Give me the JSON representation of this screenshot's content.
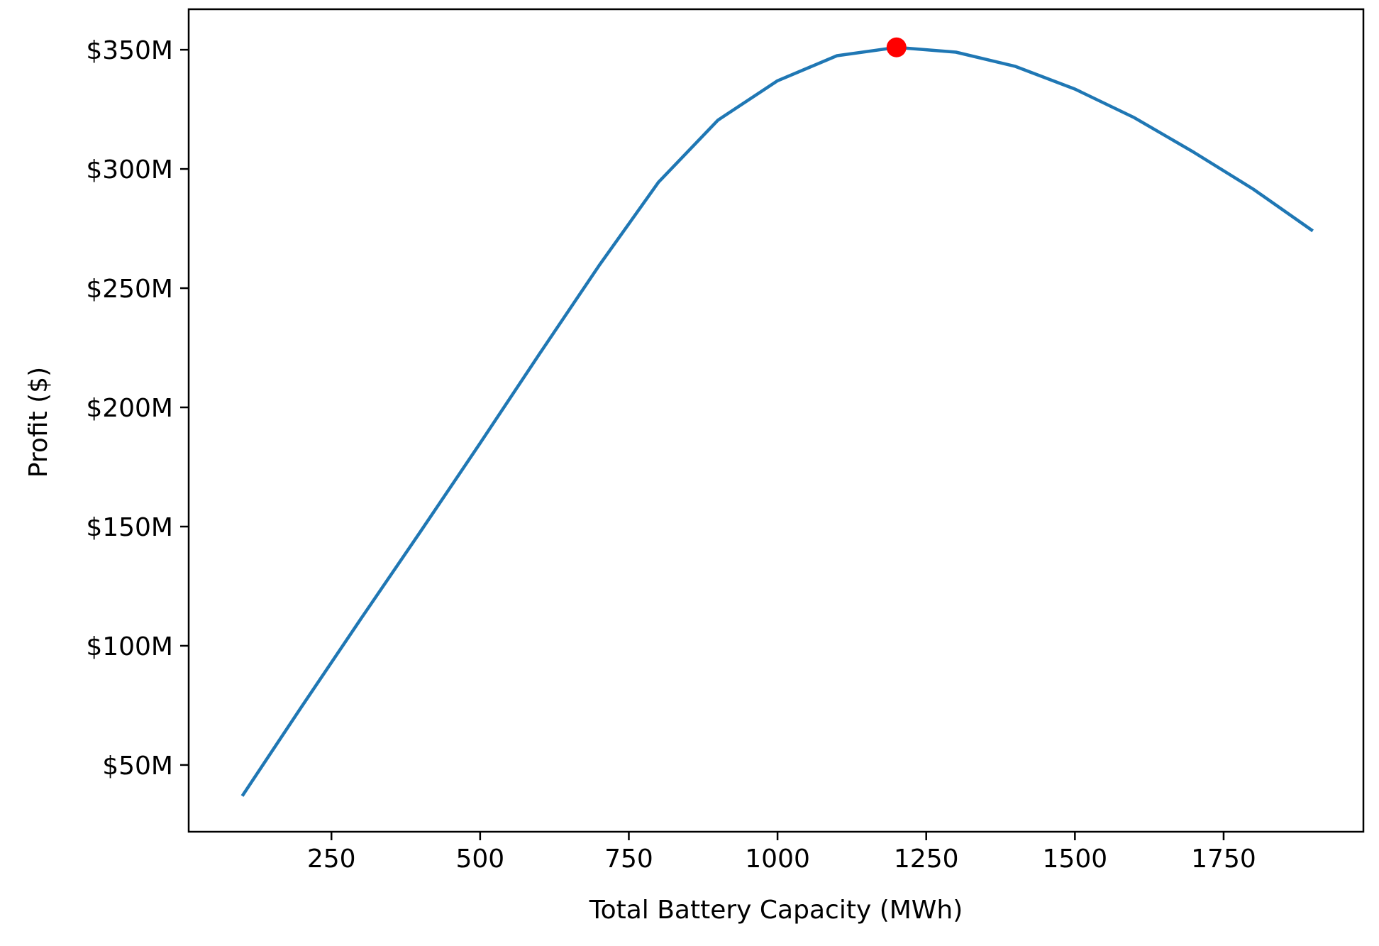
{
  "chart_data": {
    "type": "line",
    "title": "",
    "xlabel": "Total Battery Capacity (MWh)",
    "ylabel": "Profit ($)",
    "xlim": [
      10,
      1985
    ],
    "ylim": [
      22000000,
      367000000
    ],
    "grid": false,
    "x_ticks": [
      250,
      500,
      750,
      1000,
      1250,
      1500,
      1750
    ],
    "x_tick_labels": [
      "250",
      "500",
      "750",
      "1000",
      "1250",
      "1500",
      "1750"
    ],
    "y_ticks": [
      50000000,
      100000000,
      150000000,
      200000000,
      250000000,
      300000000,
      350000000
    ],
    "y_tick_labels": [
      "$50M",
      "$100M",
      "$150M",
      "$200M",
      "$250M",
      "$300M",
      "$350M"
    ],
    "series": [
      {
        "color": "#1f77b4",
        "x": [
          100,
          200,
          300,
          400,
          500,
          600,
          700,
          800,
          900,
          1000,
          1100,
          1200,
          1300,
          1400,
          1500,
          1600,
          1700,
          1800,
          1900
        ],
        "y": [
          37000000,
          74500000,
          111500000,
          148000000,
          185000000,
          222500000,
          259500000,
          294500000,
          320500000,
          337000000,
          347500000,
          351000000,
          349000000,
          343000000,
          333500000,
          321500000,
          307000000,
          291500000,
          274000000
        ]
      }
    ],
    "highlight": {
      "x": 1200,
      "y": 351000000,
      "color": "#ff0000"
    }
  }
}
